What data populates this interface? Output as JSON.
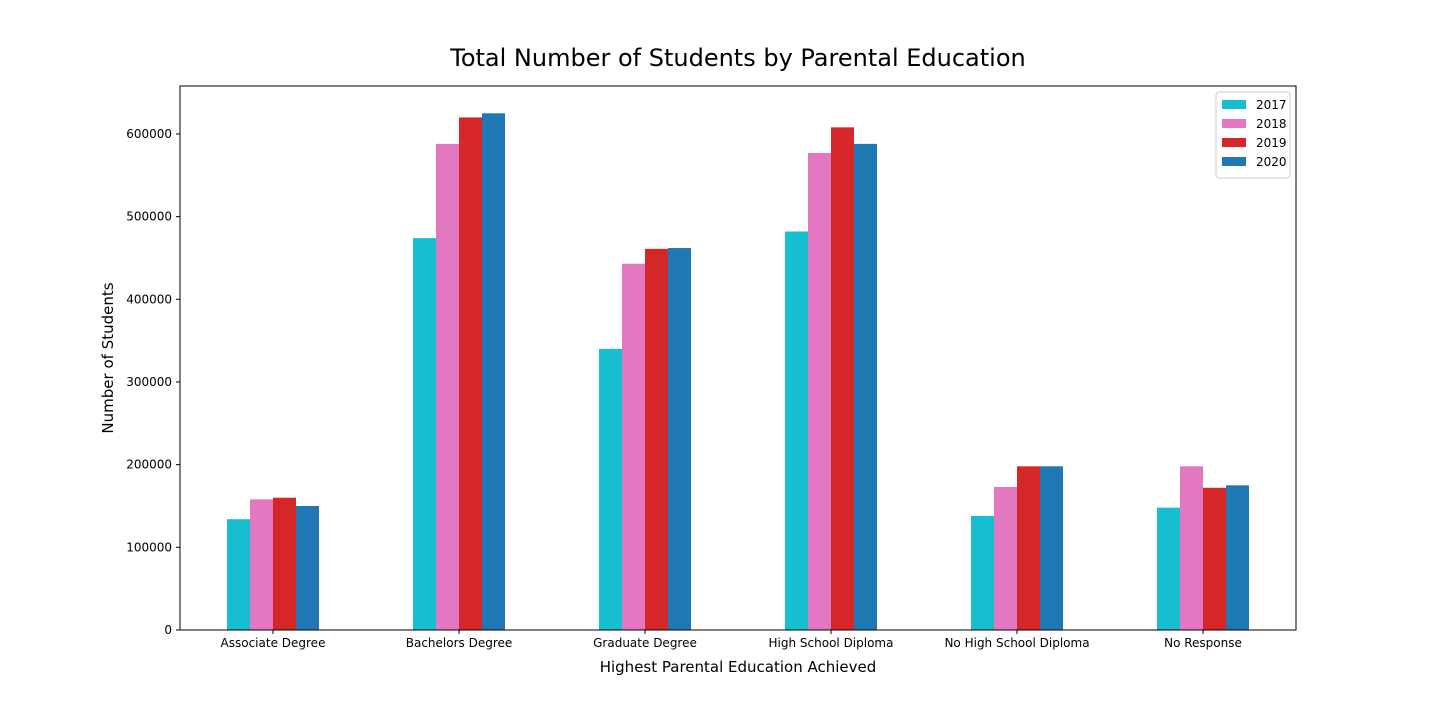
{
  "chart_data": {
    "type": "bar",
    "title": "Total Number of Students by Parental Education",
    "xlabel": "Highest Parental Education Achieved",
    "ylabel": "Number of Students",
    "categories": [
      "Associate Degree",
      "Bachelors Degree",
      "Graduate Degree",
      "High School Diploma",
      "No High School Diploma",
      "No Response"
    ],
    "ylim": [
      0,
      658000
    ],
    "yticks": [
      0,
      100000,
      200000,
      300000,
      400000,
      500000,
      600000
    ],
    "ytick_labels": [
      "0",
      "100000",
      "200000",
      "300000",
      "400000",
      "500000",
      "600000"
    ],
    "grid": false,
    "legend_position": "top-right",
    "series": [
      {
        "name": "2017",
        "color": "#17becf",
        "values": [
          134000,
          474000,
          340000,
          482000,
          138000,
          148000
        ]
      },
      {
        "name": "2018",
        "color": "#e377c2",
        "values": [
          158000,
          588000,
          443000,
          577000,
          173000,
          198000
        ]
      },
      {
        "name": "2019",
        "color": "#d62728",
        "values": [
          160000,
          620000,
          461000,
          608000,
          198000,
          172000
        ]
      },
      {
        "name": "2020",
        "color": "#1f77b4",
        "values": [
          150000,
          625000,
          462000,
          588000,
          198000,
          175000
        ]
      }
    ]
  }
}
